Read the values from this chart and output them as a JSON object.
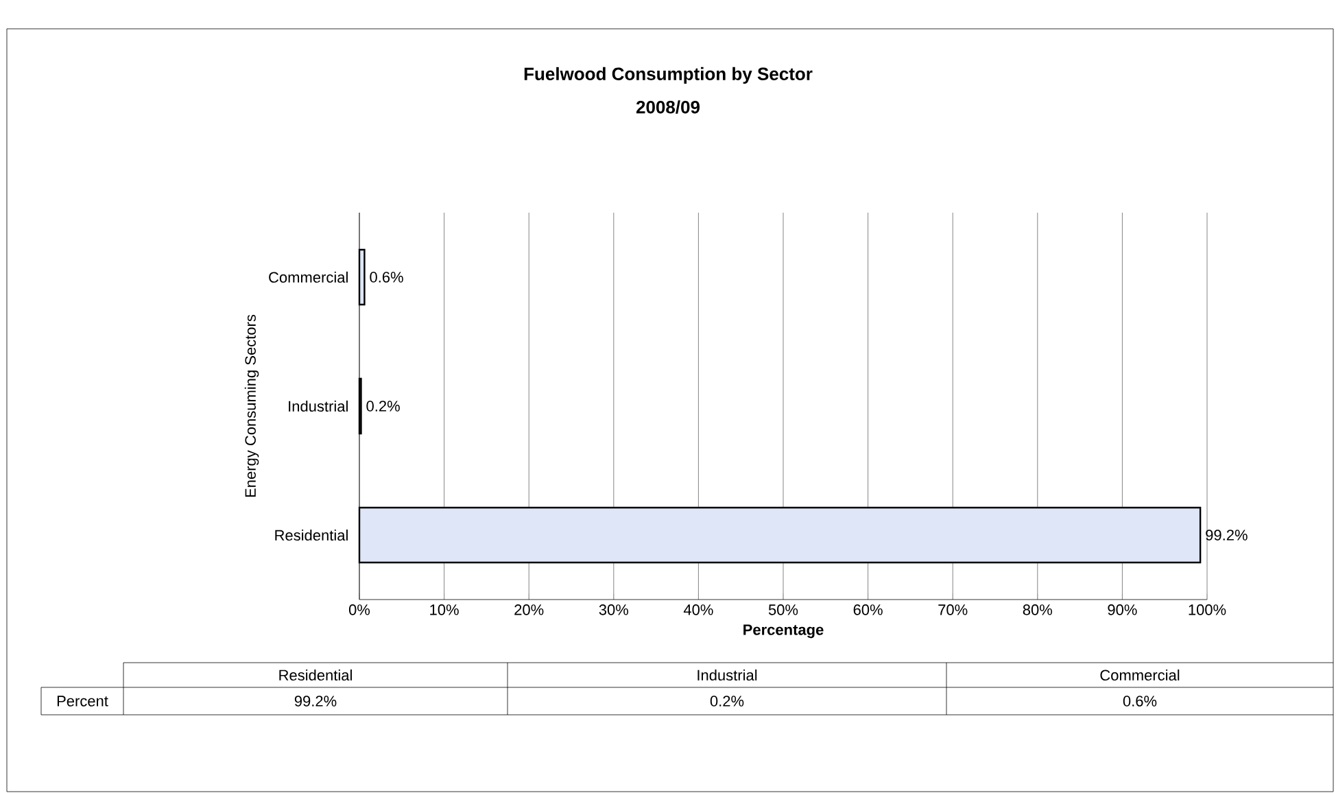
{
  "chart_data": {
    "type": "bar",
    "orientation": "horizontal",
    "title": "Fuelwood Consumption by Sector",
    "subtitle": "2008/09",
    "xlabel": "Percentage",
    "ylabel": "Energy Consuming Sectors",
    "categories": [
      "Commercial",
      "Industrial",
      "Residential"
    ],
    "values": [
      0.6,
      0.2,
      99.2
    ],
    "color": "#dfe6f7",
    "value_labels": [
      "0.6%",
      "0.2%",
      "99.2%"
    ],
    "xlim": [
      0,
      100
    ],
    "xticks": [
      {
        "value": 0,
        "label": "0%"
      },
      {
        "value": 10,
        "label": "10%"
      },
      {
        "value": 20,
        "label": "20%"
      },
      {
        "value": 30,
        "label": "30%"
      },
      {
        "value": 40,
        "label": "40%"
      },
      {
        "value": 50,
        "label": "50%"
      },
      {
        "value": 60,
        "label": "60%"
      },
      {
        "value": 70,
        "label": "70%"
      },
      {
        "value": 80,
        "label": "80%"
      },
      {
        "value": 90,
        "label": "90%"
      },
      {
        "value": 100,
        "label": "100%"
      }
    ],
    "grid": "x",
    "annotations": [
      "Percent"
    ]
  }
}
